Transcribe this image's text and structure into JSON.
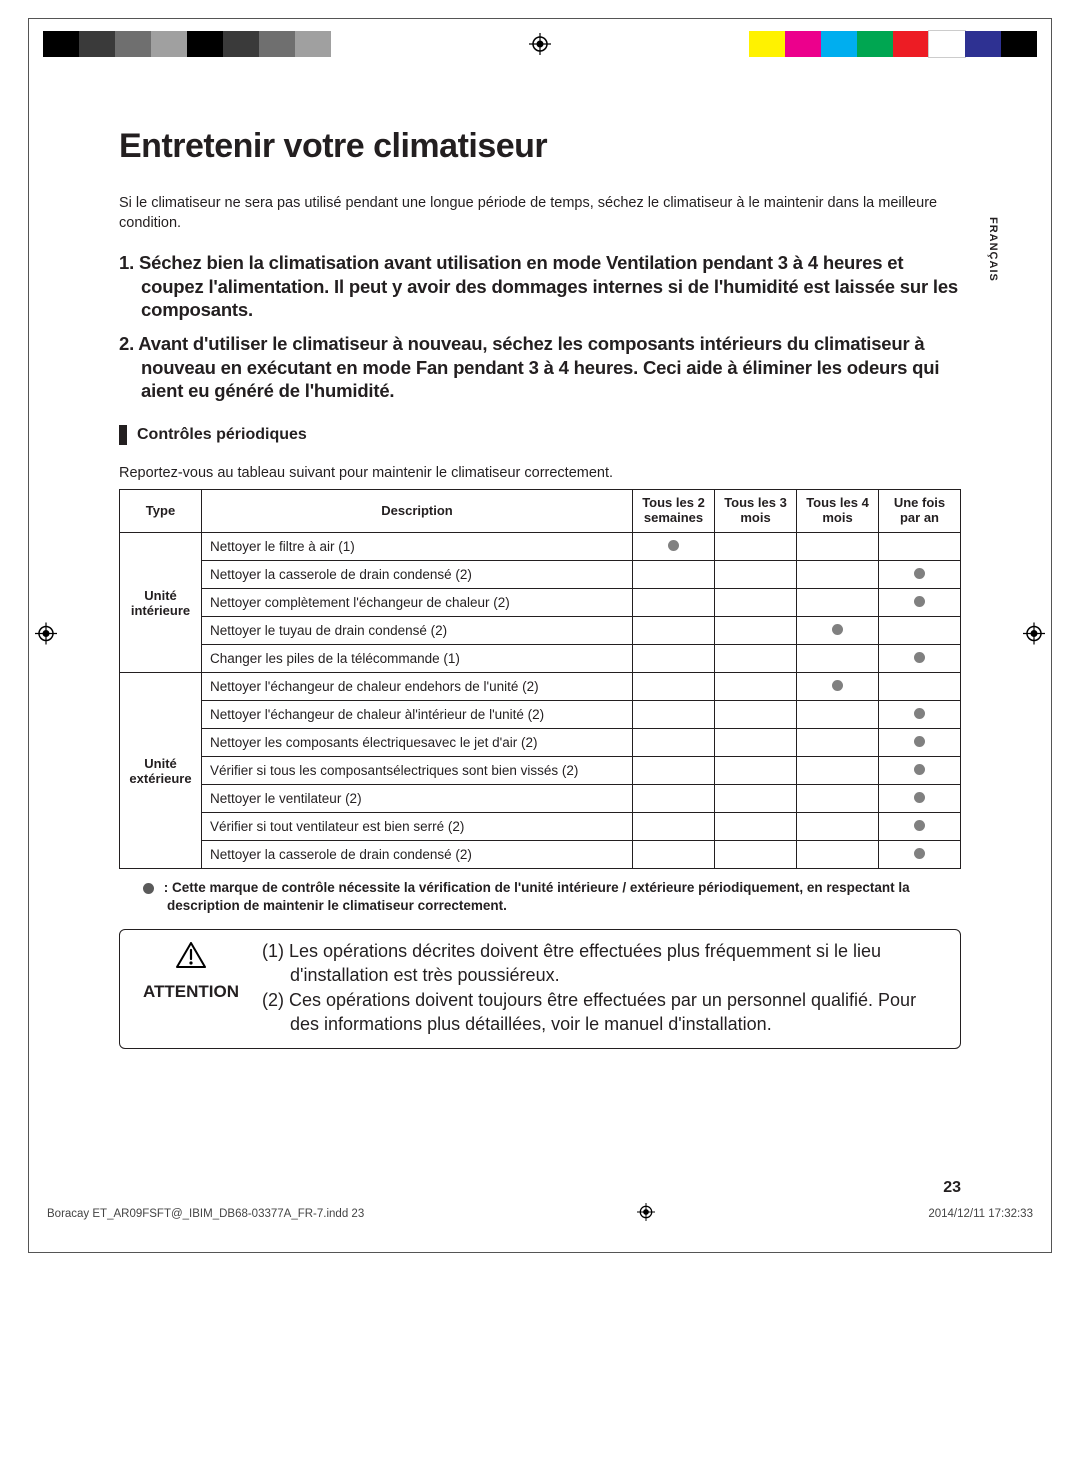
{
  "colorbar": {
    "left": [
      "#000000",
      "#3a3a3a",
      "#6f6f6f",
      "#a0a0a0",
      "#000000",
      "#3a3a3a",
      "#6f6f6f",
      "#a0a0a0"
    ],
    "right": [
      "#fff200",
      "#ec008c",
      "#00aeef",
      "#00a651",
      "#ed1c24",
      "#ffffff",
      "#2e3192",
      "#000000"
    ]
  },
  "side_lang": "FRANÇAIS",
  "title": "Entretenir votre climatiseur",
  "intro": "Si le climatiseur ne sera pas utilisé pendant une longue période de temps, séchez le climatiseur à le maintenir dans la meilleure condition.",
  "step1": "1.  Séchez bien la climatisation avant utilisation en mode Ventilation pendant 3 à 4 heures et coupez l'alimentation. Il peut y avoir des dommages internes si de l'humidité est laissée sur les composants.",
  "step2": "2.  Avant d'utiliser le climatiseur à nouveau, séchez les composants intérieurs du climatiseur à nouveau en exécutant en mode Fan pendant 3 à 4 heures. Ceci aide à éliminer les odeurs qui aient eu généré de l'humidité.",
  "section_heading": "Contrôles périodiques",
  "table_intro": "Reportez-vous au tableau suivant pour maintenir le climatiseur correctement.",
  "headers": {
    "type": "Type",
    "desc": "Description",
    "c2w": "Tous les 2 semaines",
    "c3m": "Tous les 3 mois",
    "c4m": "Tous les 4 mois",
    "c1y": "Une fois par an"
  },
  "groups": [
    {
      "type_label": "Unité intérieure",
      "rows": [
        {
          "desc": "Nettoyer le filtre à air (1)",
          "c2w": true,
          "c3m": false,
          "c4m": false,
          "c1y": false
        },
        {
          "desc": "Nettoyer la casserole de drain condensé (2)",
          "c2w": false,
          "c3m": false,
          "c4m": false,
          "c1y": true
        },
        {
          "desc": "Nettoyer complètement l'échangeur de chaleur (2)",
          "c2w": false,
          "c3m": false,
          "c4m": false,
          "c1y": true
        },
        {
          "desc": "Nettoyer le tuyau de drain condensé (2)",
          "c2w": false,
          "c3m": false,
          "c4m": true,
          "c1y": false
        },
        {
          "desc": "Changer les piles de la télécommande (1)",
          "c2w": false,
          "c3m": false,
          "c4m": false,
          "c1y": true
        }
      ]
    },
    {
      "type_label": "Unité extérieure",
      "rows": [
        {
          "desc": "Nettoyer l'échangeur de chaleur endehors de l'unité (2)",
          "c2w": false,
          "c3m": false,
          "c4m": true,
          "c1y": false
        },
        {
          "desc": "Nettoyer l'échangeur de chaleur àl'intérieur de l'unité (2)",
          "c2w": false,
          "c3m": false,
          "c4m": false,
          "c1y": true
        },
        {
          "desc": "Nettoyer les composants électriquesavec le jet d'air (2)",
          "c2w": false,
          "c3m": false,
          "c4m": false,
          "c1y": true
        },
        {
          "desc": "Vérifier si tous les composantsélectriques sont bien vissés (2)",
          "c2w": false,
          "c3m": false,
          "c4m": false,
          "c1y": true
        },
        {
          "desc": "Nettoyer le ventilateur (2)",
          "c2w": false,
          "c3m": false,
          "c4m": false,
          "c1y": true
        },
        {
          "desc": "Vérifier si tout ventilateur est bien serré (2)",
          "c2w": false,
          "c3m": false,
          "c4m": false,
          "c1y": true
        },
        {
          "desc": "Nettoyer la casserole de drain condensé (2)",
          "c2w": false,
          "c3m": false,
          "c4m": false,
          "c1y": true
        }
      ]
    }
  ],
  "footnote_prefix": " :  ",
  "footnote": "Cette marque de contrôle nécessite la vérification de l'unité intérieure / extérieure périodiquement, en respectant la description de maintenir le climatiseur correctement.",
  "attention_label": "ATTENTION",
  "attention_1": "(1)  Les opérations décrites doivent être effectuées plus fréquemment si le lieu d'installation est très poussiéreux.",
  "attention_2": "(2)  Ces opérations doivent toujours être effectuées par un personnel qualifié. Pour des informations plus détaillées, voir le manuel d'installation.",
  "page_number": "23",
  "footer_file": "Boracay ET_AR09FSFT@_IBIM_DB68-03377A_FR-7.indd   23",
  "footer_date": "2014/12/11   17:32:33"
}
